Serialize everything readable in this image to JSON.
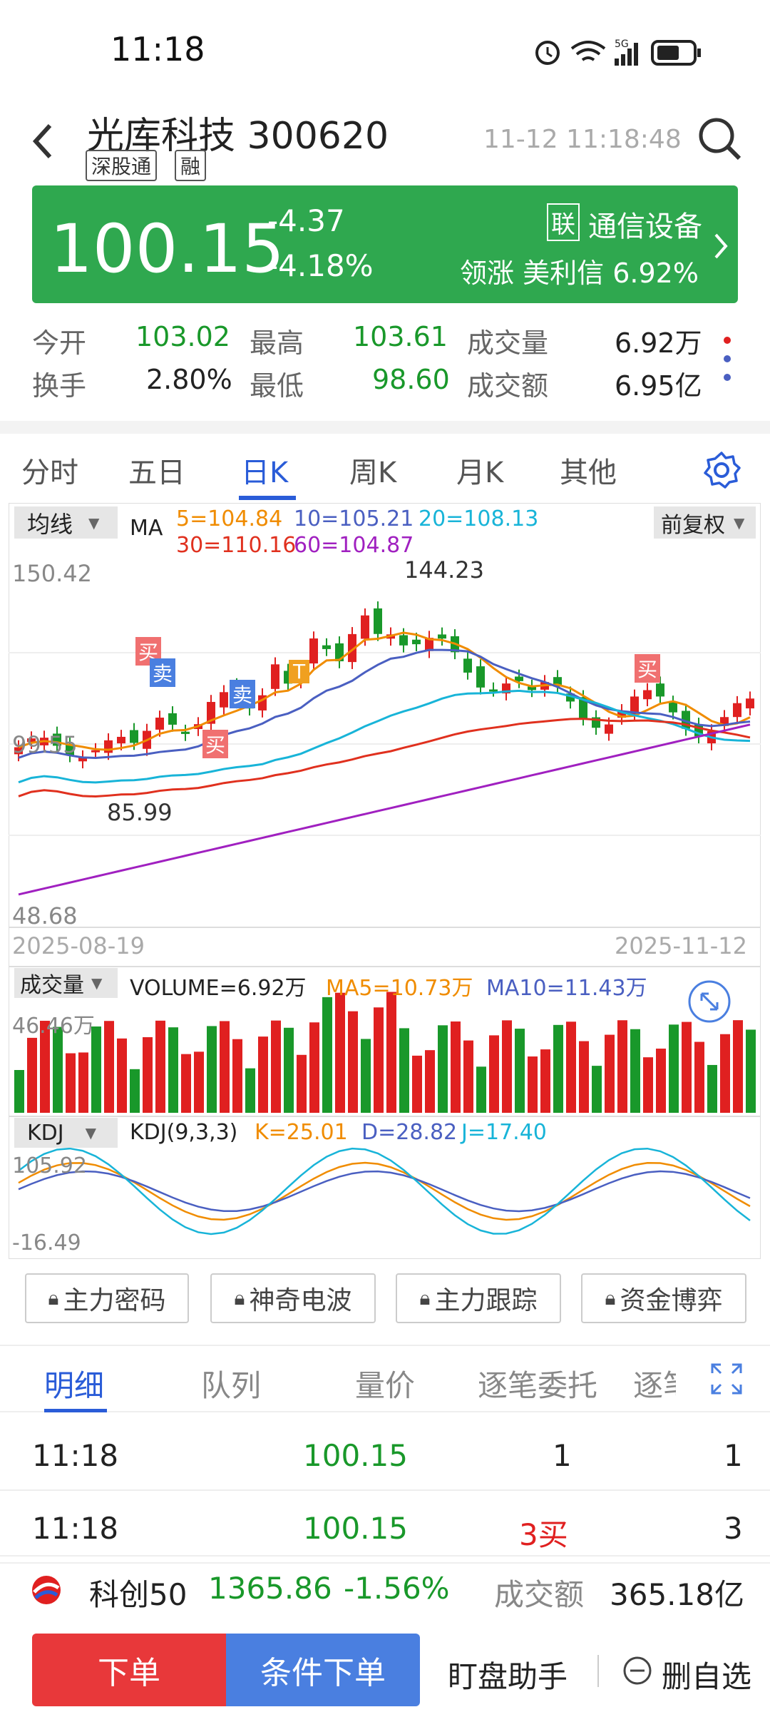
{
  "status_bar": {
    "time": "11:18",
    "network": "5G"
  },
  "header": {
    "stock_name": "光库科技",
    "stock_code": "300620",
    "tags": [
      "深股通",
      "融"
    ],
    "datetime": "11-12 11:18:48"
  },
  "price_box": {
    "price": "100.15",
    "change": "-4.37",
    "change_pct": "-4.18%",
    "sector_badge": "联",
    "sector": "通信设备",
    "leader_label": "领涨",
    "leader_name": "美利信",
    "leader_pct": "6.92%"
  },
  "stats": [
    {
      "label": "今开",
      "value": "103.02"
    },
    {
      "label": "最高",
      "value": "103.61"
    },
    {
      "label": "成交量",
      "value": "6.92万"
    },
    {
      "label": "换手",
      "value": "2.80%"
    },
    {
      "label": "最低",
      "value": "98.60"
    },
    {
      "label": "成交额",
      "value": "6.95亿"
    }
  ],
  "tabs": [
    "分时",
    "五日",
    "日K",
    "周K",
    "月K",
    "其他"
  ],
  "active_tab": "日K",
  "chart": {
    "ma_selector": "均线",
    "ma_label": "MA",
    "ma5": "5=104.84",
    "ma10": "10=105.21",
    "ma20": "20=108.13",
    "ma30": "30=110.16",
    "ma60": "60=104.87",
    "adjust": "前复权",
    "ymax": "150.42",
    "ymid": "99.55",
    "ymin": "48.68",
    "high_mark": "144.23",
    "low_mark": "85.99",
    "date_start": "2025-08-19",
    "date_end": "2025-11-12",
    "signals": [
      "买",
      "卖",
      "卖",
      "T",
      "买",
      "买"
    ],
    "vol_selector": "成交量",
    "vol_value": "VOLUME=6.92万",
    "vol_ma5": "MA5=10.73万",
    "vol_ma10": "MA10=11.43万",
    "vol_max": "46.46万",
    "kdj_selector": "KDJ",
    "kdj_params": "KDJ(9,3,3)",
    "kdj_k": "K=25.01",
    "kdj_d": "D=28.82",
    "kdj_j": "J=17.40",
    "kdj_max": "105.92",
    "kdj_min": "-16.49",
    "colors": {
      "ma5": "#f08c00",
      "ma10": "#4a5fc1",
      "ma20": "#18b4d8",
      "ma30": "#e0301e",
      "ma60": "#a020c0",
      "up": "#e02020",
      "down": "#19982a"
    }
  },
  "tools": [
    "主力密码",
    "神奇电波",
    "主力跟踪",
    "资金博弈"
  ],
  "trade_tabs": [
    "明细",
    "队列",
    "量价",
    "逐笔委托",
    "逐笔"
  ],
  "trade_rows": [
    {
      "time": "11:18",
      "price": "100.15",
      "qty": "1",
      "count": "1"
    },
    {
      "time": "11:18",
      "price": "100.15",
      "qty": "3买",
      "count": "3"
    }
  ],
  "index_bar": {
    "name": "科创50",
    "value": "1365.86",
    "pct": "-1.56%",
    "amount_label": "成交额",
    "amount": "365.18亿"
  },
  "bottom": {
    "order": "下单",
    "cond_order": "条件下单",
    "monitor": "盯盘助手",
    "remove": "删自选"
  }
}
